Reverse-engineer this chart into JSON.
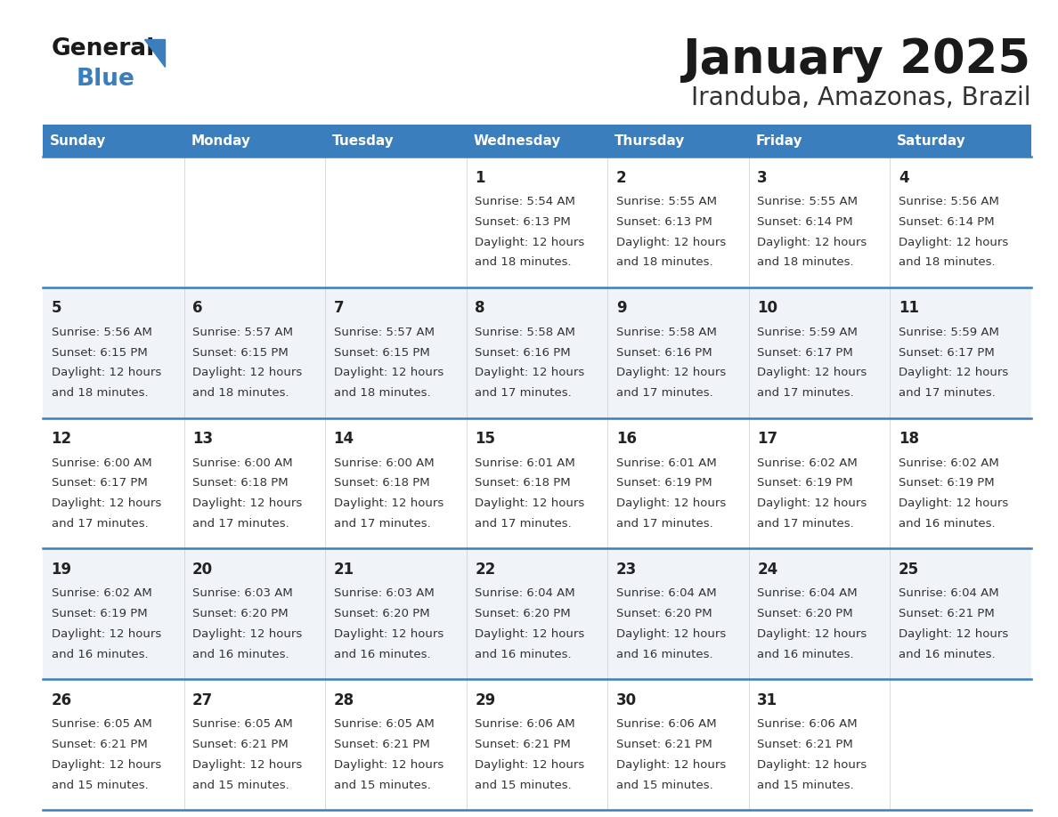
{
  "title": "January 2025",
  "subtitle": "Iranduba, Amazonas, Brazil",
  "days_of_week": [
    "Sunday",
    "Monday",
    "Tuesday",
    "Wednesday",
    "Thursday",
    "Friday",
    "Saturday"
  ],
  "header_bg": "#3A7EBD",
  "header_text": "#FFFFFF",
  "row_bg_light": "#F0F4F8",
  "row_bg_white": "#FFFFFF",
  "separator_color": "#3A7EBD",
  "day_number_color": "#222222",
  "text_color": "#333333",
  "title_color": "#1a1a1a",
  "subtitle_color": "#333333",
  "logo_general_color": "#1a1a1a",
  "logo_blue_color": "#3A7EBD",
  "logo_triangle_color": "#3A7EBD",
  "calendar_data": [
    {
      "day": 1,
      "col": 3,
      "row": 0,
      "sunrise": "5:54 AM",
      "sunset": "6:13 PM",
      "daylight": "12 hours and 18 minutes."
    },
    {
      "day": 2,
      "col": 4,
      "row": 0,
      "sunrise": "5:55 AM",
      "sunset": "6:13 PM",
      "daylight": "12 hours and 18 minutes."
    },
    {
      "day": 3,
      "col": 5,
      "row": 0,
      "sunrise": "5:55 AM",
      "sunset": "6:14 PM",
      "daylight": "12 hours and 18 minutes."
    },
    {
      "day": 4,
      "col": 6,
      "row": 0,
      "sunrise": "5:56 AM",
      "sunset": "6:14 PM",
      "daylight": "12 hours and 18 minutes."
    },
    {
      "day": 5,
      "col": 0,
      "row": 1,
      "sunrise": "5:56 AM",
      "sunset": "6:15 PM",
      "daylight": "12 hours and 18 minutes."
    },
    {
      "day": 6,
      "col": 1,
      "row": 1,
      "sunrise": "5:57 AM",
      "sunset": "6:15 PM",
      "daylight": "12 hours and 18 minutes."
    },
    {
      "day": 7,
      "col": 2,
      "row": 1,
      "sunrise": "5:57 AM",
      "sunset": "6:15 PM",
      "daylight": "12 hours and 18 minutes."
    },
    {
      "day": 8,
      "col": 3,
      "row": 1,
      "sunrise": "5:58 AM",
      "sunset": "6:16 PM",
      "daylight": "12 hours and 17 minutes."
    },
    {
      "day": 9,
      "col": 4,
      "row": 1,
      "sunrise": "5:58 AM",
      "sunset": "6:16 PM",
      "daylight": "12 hours and 17 minutes."
    },
    {
      "day": 10,
      "col": 5,
      "row": 1,
      "sunrise": "5:59 AM",
      "sunset": "6:17 PM",
      "daylight": "12 hours and 17 minutes."
    },
    {
      "day": 11,
      "col": 6,
      "row": 1,
      "sunrise": "5:59 AM",
      "sunset": "6:17 PM",
      "daylight": "12 hours and 17 minutes."
    },
    {
      "day": 12,
      "col": 0,
      "row": 2,
      "sunrise": "6:00 AM",
      "sunset": "6:17 PM",
      "daylight": "12 hours and 17 minutes."
    },
    {
      "day": 13,
      "col": 1,
      "row": 2,
      "sunrise": "6:00 AM",
      "sunset": "6:18 PM",
      "daylight": "12 hours and 17 minutes."
    },
    {
      "day": 14,
      "col": 2,
      "row": 2,
      "sunrise": "6:00 AM",
      "sunset": "6:18 PM",
      "daylight": "12 hours and 17 minutes."
    },
    {
      "day": 15,
      "col": 3,
      "row": 2,
      "sunrise": "6:01 AM",
      "sunset": "6:18 PM",
      "daylight": "12 hours and 17 minutes."
    },
    {
      "day": 16,
      "col": 4,
      "row": 2,
      "sunrise": "6:01 AM",
      "sunset": "6:19 PM",
      "daylight": "12 hours and 17 minutes."
    },
    {
      "day": 17,
      "col": 5,
      "row": 2,
      "sunrise": "6:02 AM",
      "sunset": "6:19 PM",
      "daylight": "12 hours and 17 minutes."
    },
    {
      "day": 18,
      "col": 6,
      "row": 2,
      "sunrise": "6:02 AM",
      "sunset": "6:19 PM",
      "daylight": "12 hours and 16 minutes."
    },
    {
      "day": 19,
      "col": 0,
      "row": 3,
      "sunrise": "6:02 AM",
      "sunset": "6:19 PM",
      "daylight": "12 hours and 16 minutes."
    },
    {
      "day": 20,
      "col": 1,
      "row": 3,
      "sunrise": "6:03 AM",
      "sunset": "6:20 PM",
      "daylight": "12 hours and 16 minutes."
    },
    {
      "day": 21,
      "col": 2,
      "row": 3,
      "sunrise": "6:03 AM",
      "sunset": "6:20 PM",
      "daylight": "12 hours and 16 minutes."
    },
    {
      "day": 22,
      "col": 3,
      "row": 3,
      "sunrise": "6:04 AM",
      "sunset": "6:20 PM",
      "daylight": "12 hours and 16 minutes."
    },
    {
      "day": 23,
      "col": 4,
      "row": 3,
      "sunrise": "6:04 AM",
      "sunset": "6:20 PM",
      "daylight": "12 hours and 16 minutes."
    },
    {
      "day": 24,
      "col": 5,
      "row": 3,
      "sunrise": "6:04 AM",
      "sunset": "6:20 PM",
      "daylight": "12 hours and 16 minutes."
    },
    {
      "day": 25,
      "col": 6,
      "row": 3,
      "sunrise": "6:04 AM",
      "sunset": "6:21 PM",
      "daylight": "12 hours and 16 minutes."
    },
    {
      "day": 26,
      "col": 0,
      "row": 4,
      "sunrise": "6:05 AM",
      "sunset": "6:21 PM",
      "daylight": "12 hours and 15 minutes."
    },
    {
      "day": 27,
      "col": 1,
      "row": 4,
      "sunrise": "6:05 AM",
      "sunset": "6:21 PM",
      "daylight": "12 hours and 15 minutes."
    },
    {
      "day": 28,
      "col": 2,
      "row": 4,
      "sunrise": "6:05 AM",
      "sunset": "6:21 PM",
      "daylight": "12 hours and 15 minutes."
    },
    {
      "day": 29,
      "col": 3,
      "row": 4,
      "sunrise": "6:06 AM",
      "sunset": "6:21 PM",
      "daylight": "12 hours and 15 minutes."
    },
    {
      "day": 30,
      "col": 4,
      "row": 4,
      "sunrise": "6:06 AM",
      "sunset": "6:21 PM",
      "daylight": "12 hours and 15 minutes."
    },
    {
      "day": 31,
      "col": 5,
      "row": 4,
      "sunrise": "6:06 AM",
      "sunset": "6:21 PM",
      "daylight": "12 hours and 15 minutes."
    }
  ]
}
